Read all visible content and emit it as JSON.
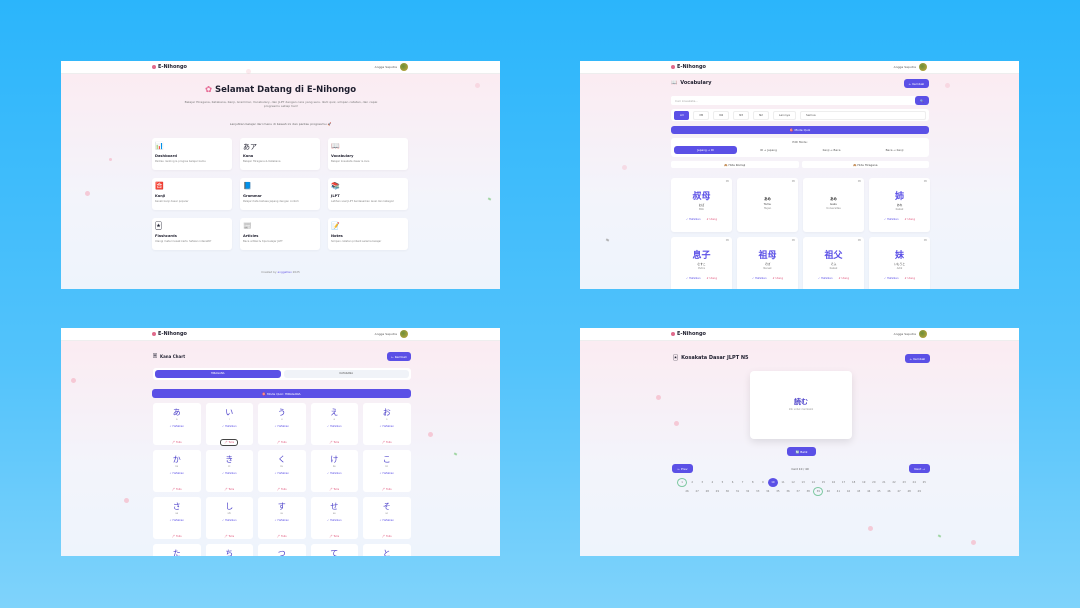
{
  "app": {
    "brand": "E-Nihongo",
    "user": "Angga Saputra"
  },
  "home": {
    "title": "Selamat Datang di E-Nihongo",
    "subtitle": "Belajar Hiragana, Katakana, Kanji, Grammar, Vocabulary, dan JLPT dengan cara yang seru. Ikuti quiz, simpan catatan, dan capai progresmu setiap hari!",
    "note": "Lanjutkan belajar dari menu di bawah ini dan pantau progresmu 🚀",
    "cards": [
      {
        "icon": "📊",
        "title": "Dashboard",
        "desc": "Pantau ranking & progres belajar kamu"
      },
      {
        "icon": "あア",
        "title": "Kana",
        "desc": "Belajar Hiragana & Katakana"
      },
      {
        "icon": "📖",
        "title": "Vocabulary",
        "desc": "Belajar kosakata dasar & kuis"
      },
      {
        "icon": "🈴",
        "title": "Kanji",
        "desc": "Kenali kanji dasar populer"
      },
      {
        "icon": "📘",
        "title": "Grammar",
        "desc": "Pelajari tata bahasa Jepang dengan contoh"
      },
      {
        "icon": "📚",
        "title": "JLPT",
        "desc": "Latihan soal JLPT berdasarkan level dan kategori"
      },
      {
        "icon": "🃏",
        "title": "Flashcards",
        "desc": "Ulangi materi lewat kartu hafalan interaktif"
      },
      {
        "icon": "📰",
        "title": "Articles",
        "desc": "Baca artikel & tips belajar JLPT"
      },
      {
        "icon": "📝",
        "title": "Notes",
        "desc": "Simpan catatan pribadi selama belajar"
      }
    ],
    "footer_prefix": "Created by ",
    "footer_link": "anggaDev",
    "footer_suffix": " 2025"
  },
  "vocab": {
    "title": "Vocabulary",
    "back": "← Kembali",
    "search_placeholder": "Cari kosakata...",
    "search_btn": "🔍",
    "filters": [
      "All",
      "N5",
      "N4",
      "N3",
      "N2",
      "Lainnya"
    ],
    "category": "Semua",
    "quiz": "🎯 Mode Quiz",
    "mode_label": "Pilih Mode:",
    "modes": [
      "Jepang → ID",
      "ID → Jepang",
      "Kanji → Baca",
      "Baca → Kanji"
    ],
    "hide_romaji": "🙈 Hide Romaji",
    "hide_hiragana": "🙈 Hide Hiragana",
    "cards": [
      {
        "level": "N5",
        "kanji": "叔母",
        "reading": "おば",
        "meaning": "Bibi",
        "big": true
      },
      {
        "level": "N5",
        "kanji": "あめ",
        "reading": "Tamu",
        "meaning": "Hujan",
        "big": false
      },
      {
        "level": "N5",
        "kanji": "あめ",
        "reading": "Gaku",
        "meaning": "Universitas",
        "big": false
      },
      {
        "level": "N5",
        "kanji": "姉",
        "reading": "あね",
        "meaning": "Kakak",
        "big": true
      },
      {
        "level": "N5",
        "kanji": "息子",
        "reading": "むすこ",
        "meaning": "Putra",
        "big": true
      },
      {
        "level": "N5",
        "kanji": "祖母",
        "reading": "そぼ",
        "meaning": "Nenek",
        "big": true
      },
      {
        "level": "N5",
        "kanji": "祖父",
        "reading": "そふ",
        "meaning": "Kakek",
        "big": true
      },
      {
        "level": "N5",
        "kanji": "妹",
        "reading": "いもうと",
        "meaning": "Adik",
        "big": true
      }
    ],
    "act_learn": "✓ Hafalkan",
    "act_repeat": "✗ Ulang"
  },
  "kana": {
    "title": "Kana Chart",
    "back": "← Kembali",
    "tabs": [
      "HIRAGANA",
      "KATAKANA"
    ],
    "quiz": "🎯 Mode Quiz: HIRAGANA",
    "chars": [
      {
        "c": "あ",
        "r": "a"
      },
      {
        "c": "い",
        "r": "i"
      },
      {
        "c": "う",
        "r": "u"
      },
      {
        "c": "え",
        "r": "e"
      },
      {
        "c": "お",
        "r": "o"
      },
      {
        "c": "か",
        "r": "ka"
      },
      {
        "c": "き",
        "r": "ki"
      },
      {
        "c": "く",
        "r": "ku"
      },
      {
        "c": "け",
        "r": "ke"
      },
      {
        "c": "こ",
        "r": "ko"
      },
      {
        "c": "さ",
        "r": "sa"
      },
      {
        "c": "し",
        "r": "shi"
      },
      {
        "c": "す",
        "r": "su"
      },
      {
        "c": "せ",
        "r": "se"
      },
      {
        "c": "そ",
        "r": "so"
      },
      {
        "c": "た",
        "r": "ta"
      },
      {
        "c": "ち",
        "r": "chi"
      },
      {
        "c": "つ",
        "r": "tsu"
      },
      {
        "c": "て",
        "r": "te"
      },
      {
        "c": "と",
        "r": "to"
      }
    ],
    "act_learn": "✓ Hafalkan",
    "act_write": "🖊 Tulis"
  },
  "flash": {
    "title": "Kosakata Dasar JLPT N5",
    "back": "← Kembali",
    "word": "読む",
    "hint": "klik untuk membalik",
    "flip": "🔄 Balik",
    "prev": "← Prev",
    "next": "Next →",
    "counter": "Card 10 / 49",
    "total": 49,
    "current": 10,
    "done": [
      1,
      39
    ]
  }
}
